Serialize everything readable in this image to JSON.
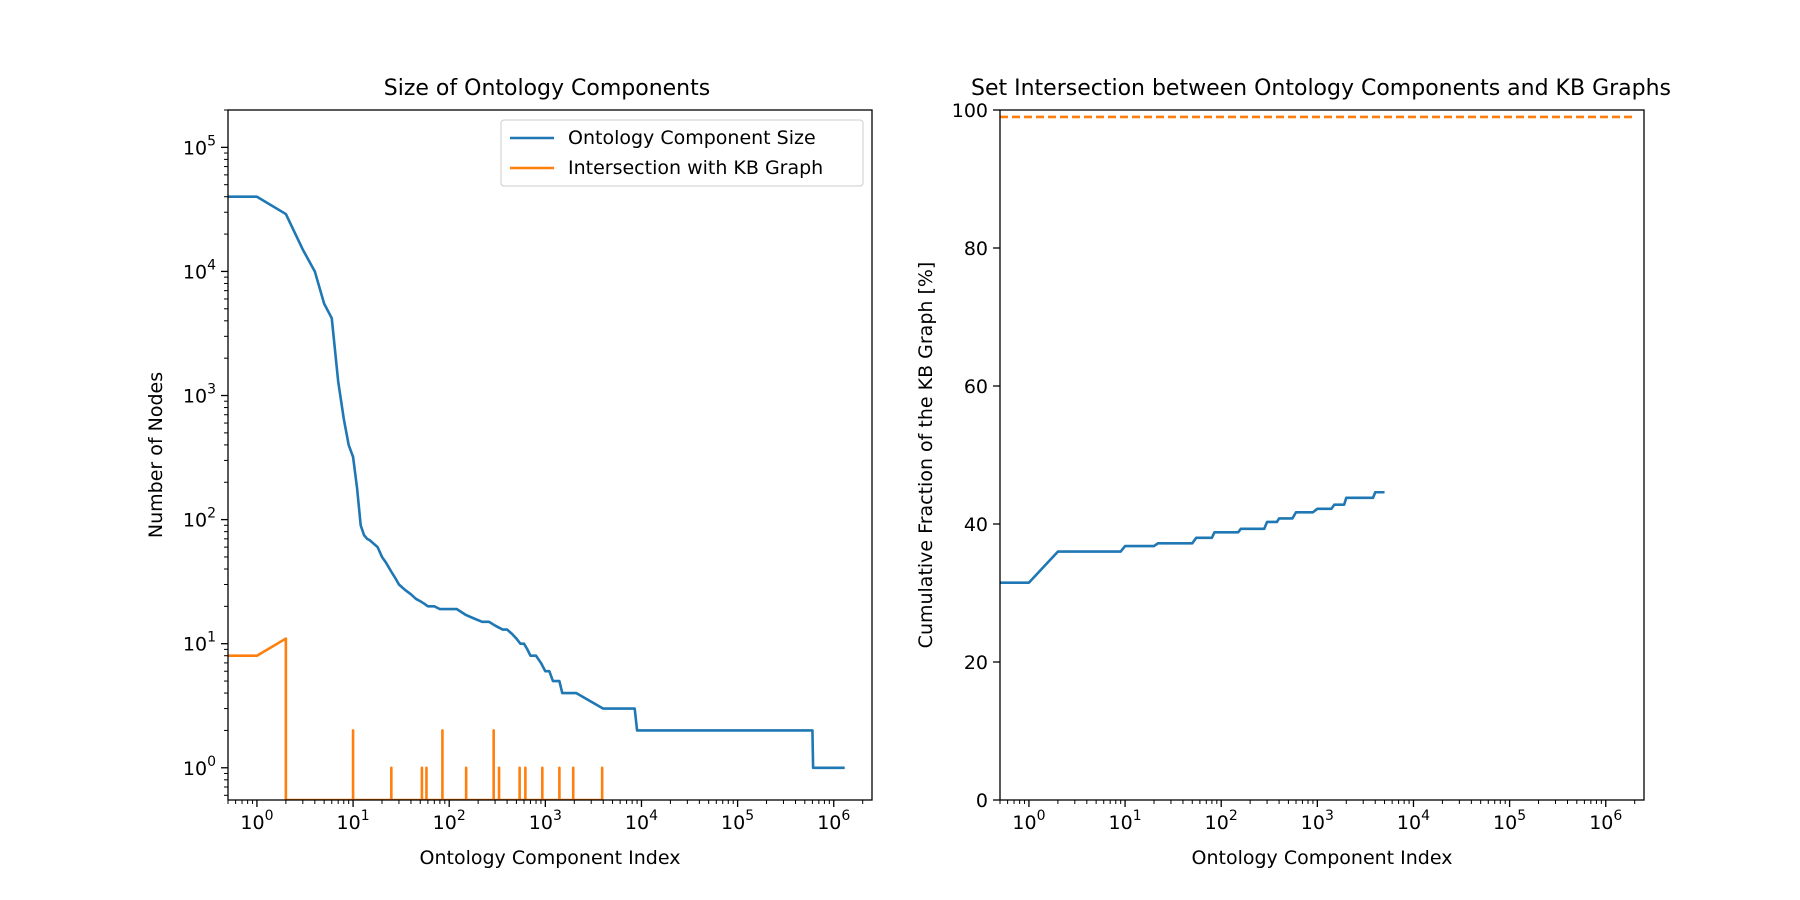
{
  "chart_data": [
    {
      "type": "line",
      "title": "Size of Ontology Components",
      "xlabel": "Ontology Component Index",
      "ylabel": "Number of Nodes",
      "xscale": "log",
      "yscale": "log",
      "xlim": [
        0.5,
        2500000
      ],
      "ylim": [
        0.55,
        200000
      ],
      "grid": false,
      "legend_position": "top-right",
      "x_ticks": [
        {
          "value": 1,
          "base": "10",
          "exp": "0"
        },
        {
          "value": 10,
          "base": "10",
          "exp": "1"
        },
        {
          "value": 100,
          "base": "10",
          "exp": "2"
        },
        {
          "value": 1000,
          "base": "10",
          "exp": "3"
        },
        {
          "value": 10000,
          "base": "10",
          "exp": "4"
        },
        {
          "value": 100000,
          "base": "10",
          "exp": "5"
        },
        {
          "value": 1000000,
          "base": "10",
          "exp": "6"
        }
      ],
      "y_ticks": [
        {
          "value": 1,
          "base": "10",
          "exp": "0"
        },
        {
          "value": 10,
          "base": "10",
          "exp": "1"
        },
        {
          "value": 100,
          "base": "10",
          "exp": "2"
        },
        {
          "value": 1000,
          "base": "10",
          "exp": "3"
        },
        {
          "value": 10000,
          "base": "10",
          "exp": "4"
        },
        {
          "value": 100000,
          "base": "10",
          "exp": "5"
        }
      ],
      "series": [
        {
          "name": "Ontology Component Size",
          "color": "#1f77b4",
          "x": [
            0.5,
            1,
            2,
            3,
            4,
            5,
            6,
            7,
            8,
            9,
            10,
            11,
            12,
            13,
            14,
            15,
            16,
            18,
            20,
            22,
            25,
            28,
            30,
            35,
            40,
            45,
            50,
            55,
            60,
            70,
            80,
            100,
            120,
            150,
            180,
            220,
            260,
            300,
            360,
            400,
            450,
            500,
            550,
            600,
            650,
            700,
            800,
            900,
            1000,
            1100,
            1200,
            1400,
            1500,
            2000,
            2100,
            4000,
            4200,
            8500,
            9000,
            600000,
            610000,
            1300000
          ],
          "y": [
            40000,
            40000,
            29000,
            15000,
            10000,
            5500,
            4200,
            1300,
            650,
            400,
            320,
            180,
            90,
            75,
            70,
            68,
            65,
            60,
            50,
            45,
            38,
            33,
            30,
            27,
            25,
            23,
            22,
            21,
            20,
            20,
            19,
            19,
            19,
            17,
            16,
            15,
            15,
            14,
            13,
            13,
            12,
            11,
            10,
            10,
            9,
            8,
            8,
            7,
            6,
            6,
            5,
            5,
            4,
            4,
            4,
            3,
            3,
            3,
            2,
            2,
            1,
            1
          ]
        },
        {
          "name": "Intersection with KB Graph",
          "color": "#ff7f0e",
          "x": [
            0.5,
            1,
            2,
            2,
            2,
            10,
            10,
            10,
            25,
            25,
            25,
            52,
            52,
            52,
            58,
            58,
            58,
            85,
            85,
            85,
            150,
            150,
            150,
            290,
            290,
            290,
            330,
            330,
            330,
            540,
            540,
            540,
            620,
            620,
            620,
            930,
            930,
            930,
            1400,
            1400,
            1400,
            1950,
            1950,
            1950,
            3900,
            3900,
            3900
          ],
          "y": [
            8,
            8,
            11,
            0.55,
            0.55,
            0.55,
            2,
            0.55,
            0.55,
            1,
            0.55,
            0.55,
            1,
            0.55,
            0.55,
            1,
            0.55,
            0.55,
            2,
            0.55,
            0.55,
            1,
            0.55,
            0.55,
            2,
            0.55,
            0.55,
            1,
            0.55,
            0.55,
            1,
            0.55,
            0.55,
            1,
            0.55,
            0.55,
            1,
            0.55,
            0.55,
            1,
            0.55,
            0.55,
            1,
            0.55,
            0.55,
            1,
            0.55
          ]
        }
      ]
    },
    {
      "type": "line",
      "title": "Set Intersection between Ontology Components and KB Graphs",
      "xlabel": "Ontology Component Index",
      "ylabel": "Cumulative Fraction of the KB Graph [%]",
      "xscale": "log",
      "yscale": "linear",
      "xlim": [
        0.5,
        2500000
      ],
      "ylim": [
        0,
        100
      ],
      "grid": false,
      "x_ticks": [
        {
          "value": 1,
          "base": "10",
          "exp": "0"
        },
        {
          "value": 10,
          "base": "10",
          "exp": "1"
        },
        {
          "value": 100,
          "base": "10",
          "exp": "2"
        },
        {
          "value": 1000,
          "base": "10",
          "exp": "3"
        },
        {
          "value": 10000,
          "base": "10",
          "exp": "4"
        },
        {
          "value": 100000,
          "base": "10",
          "exp": "5"
        },
        {
          "value": 1000000,
          "base": "10",
          "exp": "6"
        }
      ],
      "y_ticks": [
        {
          "value": 0,
          "label": "0"
        },
        {
          "value": 20,
          "label": "20"
        },
        {
          "value": 40,
          "label": "40"
        },
        {
          "value": 60,
          "label": "60"
        },
        {
          "value": 80,
          "label": "80"
        },
        {
          "value": 100,
          "label": "100"
        }
      ],
      "series": [
        {
          "color": "#1f77b4",
          "x": [
            0.5,
            1,
            2,
            9,
            10,
            20,
            22,
            50,
            55,
            80,
            85,
            150,
            160,
            280,
            300,
            380,
            400,
            550,
            600,
            900,
            1000,
            1400,
            1500,
            1900,
            2000,
            3800,
            4000,
            5000
          ],
          "y": [
            31.5,
            31.5,
            36,
            36,
            36.8,
            36.8,
            37.2,
            37.2,
            38,
            38,
            38.8,
            38.8,
            39.3,
            39.3,
            40.3,
            40.3,
            40.8,
            40.8,
            41.7,
            41.7,
            42.2,
            42.2,
            42.8,
            42.8,
            43.8,
            43.8,
            44.6,
            44.6
          ]
        },
        {
          "color": "#ff7f0e",
          "style": "dashed",
          "x": [
            0.5,
            2000000
          ],
          "y": [
            99,
            99
          ]
        }
      ]
    }
  ]
}
